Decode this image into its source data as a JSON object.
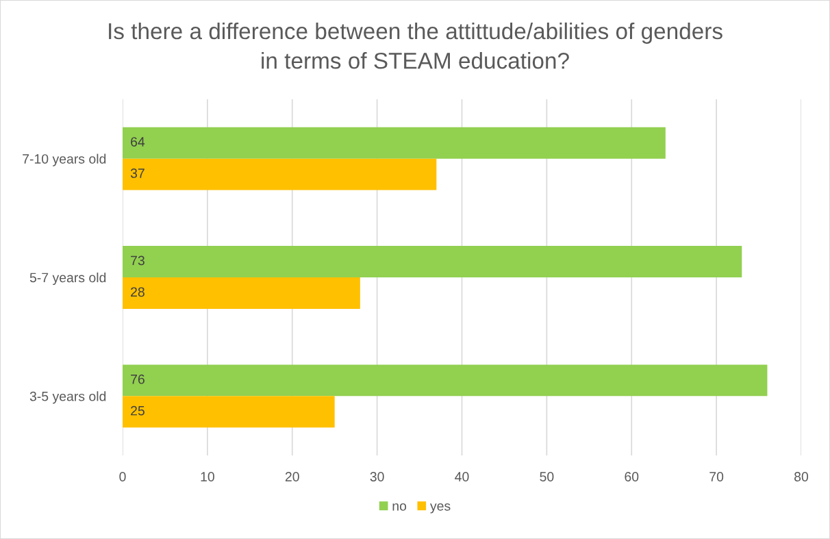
{
  "chart_data": {
    "type": "bar",
    "orientation": "horizontal",
    "title": "Is there a difference between the attittude/abilities of genders\nin terms of STEAM education?",
    "categories": [
      "7-10 years old",
      "5-7 years old",
      "3-5 years old"
    ],
    "series": [
      {
        "name": "no",
        "color": "#92d050",
        "values": [
          64,
          73,
          76
        ]
      },
      {
        "name": "yes",
        "color": "#ffc000",
        "values": [
          37,
          28,
          25
        ]
      }
    ],
    "xlim": [
      0,
      80
    ],
    "xticks": [
      0,
      10,
      20,
      30,
      40,
      50,
      60,
      70,
      80
    ],
    "grid": "x",
    "legend": "bottom",
    "data_labels": true
  }
}
